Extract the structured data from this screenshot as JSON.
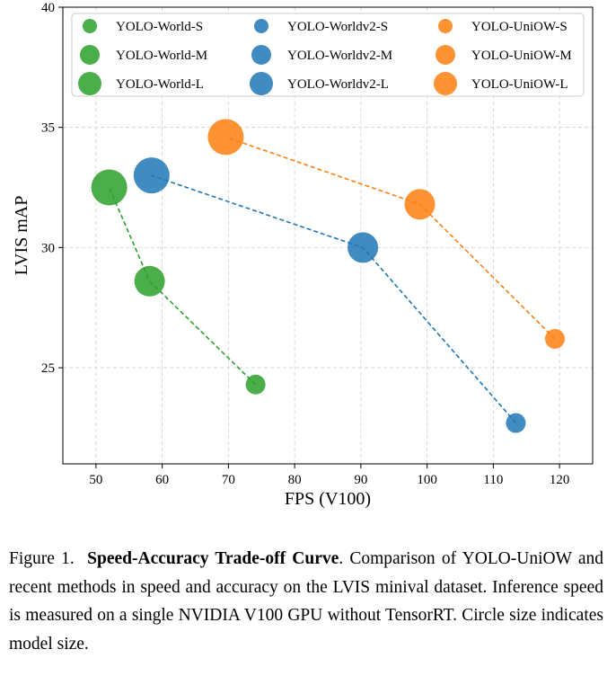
{
  "chart_data": {
    "type": "scatter",
    "title": "",
    "xlabel": "FPS (V100)",
    "ylabel": "LVIS mAP",
    "xlim": [
      45,
      125
    ],
    "ylim": [
      21,
      40
    ],
    "xticks": [
      50,
      60,
      70,
      80,
      90,
      100,
      110,
      120
    ],
    "yticks": [
      25,
      30,
      35,
      40
    ],
    "grid": true,
    "legend_position": "top",
    "series": [
      {
        "name": "YOLO-World",
        "color": "#2ca02c",
        "labels": [
          "YOLO-World-S",
          "YOLO-World-M",
          "YOLO-World-L"
        ],
        "sizes": [
          "S",
          "M",
          "L"
        ],
        "points": [
          {
            "x": 74.1,
            "y": 24.3
          },
          {
            "x": 58.1,
            "y": 28.6
          },
          {
            "x": 52.0,
            "y": 32.5
          }
        ]
      },
      {
        "name": "YOLO-Worldv2",
        "color": "#1f77b4",
        "labels": [
          "YOLO-Worldv2-S",
          "YOLO-Worldv2-M",
          "YOLO-Worldv2-L"
        ],
        "sizes": [
          "S",
          "M",
          "L"
        ],
        "points": [
          {
            "x": 113.4,
            "y": 22.7
          },
          {
            "x": 90.3,
            "y": 30.0
          },
          {
            "x": 58.4,
            "y": 33.0
          }
        ]
      },
      {
        "name": "YOLO-UniOW",
        "color": "#ff7f0e",
        "labels": [
          "YOLO-UniOW-S",
          "YOLO-UniOW-M",
          "YOLO-UniOW-L"
        ],
        "sizes": [
          "S",
          "M",
          "L"
        ],
        "points": [
          {
            "x": 119.3,
            "y": 26.2
          },
          {
            "x": 98.9,
            "y": 31.8
          },
          {
            "x": 69.6,
            "y": 34.6
          }
        ]
      }
    ]
  },
  "caption": {
    "prefix": "Figure 1.",
    "title": "Speed-Accuracy Trade-off Curve",
    "body": ". Comparison of YOLO-UniOW and recent methods in speed and accuracy on the LVIS minival dataset. Inference speed is measured on a single NVIDIA V100 GPU without TensorRT. Circle size indicates model size."
  }
}
